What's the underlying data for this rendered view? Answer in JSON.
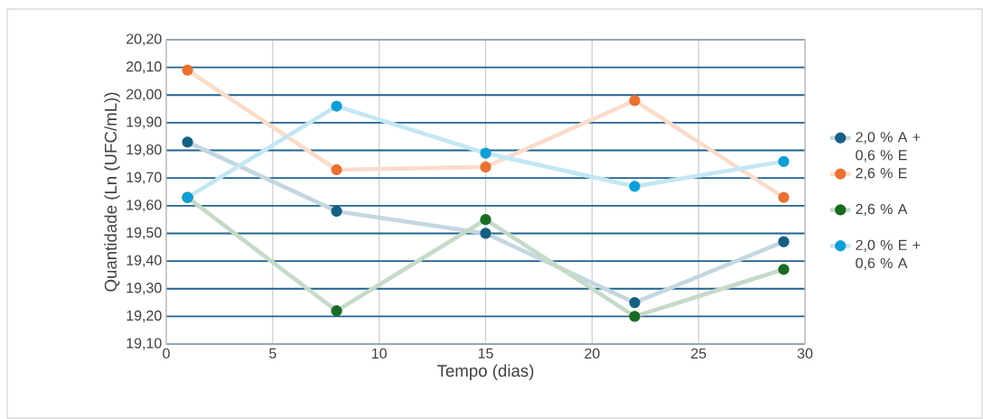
{
  "chart_data": {
    "type": "line",
    "xlabel": "Tempo (dias)",
    "ylabel": "Quantidade (Ln (UFC/mL))",
    "x": [
      1,
      8,
      15,
      22,
      29
    ],
    "series": [
      {
        "name": "2,0 % A + 0,6 % E",
        "color": "#156082",
        "values": [
          19.83,
          19.58,
          19.5,
          19.25,
          19.47
        ]
      },
      {
        "name": "2,6 % E",
        "color": "#e97132",
        "values": [
          20.09,
          19.73,
          19.74,
          19.98,
          19.63
        ]
      },
      {
        "name": "2,6 % A",
        "color": "#196b24",
        "values": [
          19.63,
          19.22,
          19.55,
          19.2,
          19.37
        ]
      },
      {
        "name": "2,0 % E + 0,6 % A",
        "color": "#0f9ed5",
        "values": [
          19.63,
          19.96,
          19.79,
          19.67,
          19.76
        ]
      }
    ],
    "xlim": [
      0,
      30
    ],
    "ylim": [
      19.1,
      20.2
    ],
    "xticks": [
      0,
      5,
      10,
      15,
      20,
      25,
      30
    ],
    "yticks": [
      {
        "value": 19.1,
        "label": "19,10"
      },
      {
        "value": 19.2,
        "label": "19,20"
      },
      {
        "value": 19.3,
        "label": "19,30"
      },
      {
        "value": 19.4,
        "label": "19,40"
      },
      {
        "value": 19.5,
        "label": "19,50"
      },
      {
        "value": 19.6,
        "label": "19,60"
      },
      {
        "value": 19.7,
        "label": "19,70"
      },
      {
        "value": 19.8,
        "label": "19,80"
      },
      {
        "value": 19.9,
        "label": "19,90"
      },
      {
        "value": 20.0,
        "label": "20,00"
      },
      {
        "value": 20.1,
        "label": "20,10"
      },
      {
        "value": 20.2,
        "label": "20,20"
      }
    ],
    "grid": true,
    "legend": "right",
    "marker": "circle",
    "line_style": "solid"
  }
}
